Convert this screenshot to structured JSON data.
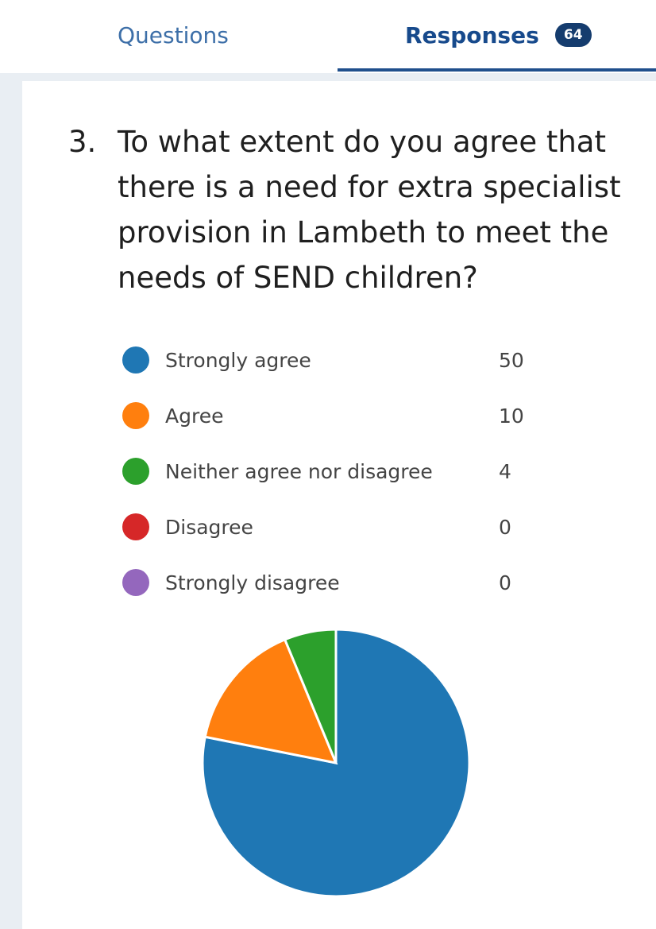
{
  "tabs": {
    "questions_label": "Questions",
    "responses_label": "Responses",
    "responses_count": "64"
  },
  "question": {
    "number": "3.",
    "text": "To what extent do you agree that there is a need for extra specialist provision in Lambeth to meet the needs of SEND children?"
  },
  "colors": {
    "strongly_agree": "#1f77b4",
    "agree": "#ff7f0e",
    "neither": "#2ca02c",
    "disagree": "#d62728",
    "strongly_disagree": "#9467bd",
    "tab_active": "#174a8c",
    "tab_inactive": "#3d6fa8"
  },
  "chart_data": {
    "type": "pie",
    "categories": [
      "Strongly agree",
      "Agree",
      "Neither agree nor disagree",
      "Disagree",
      "Strongly disagree"
    ],
    "values": [
      50,
      10,
      4,
      0,
      0
    ],
    "colors": [
      "#1f77b4",
      "#ff7f0e",
      "#2ca02c",
      "#d62728",
      "#9467bd"
    ],
    "legend_position": "top"
  }
}
